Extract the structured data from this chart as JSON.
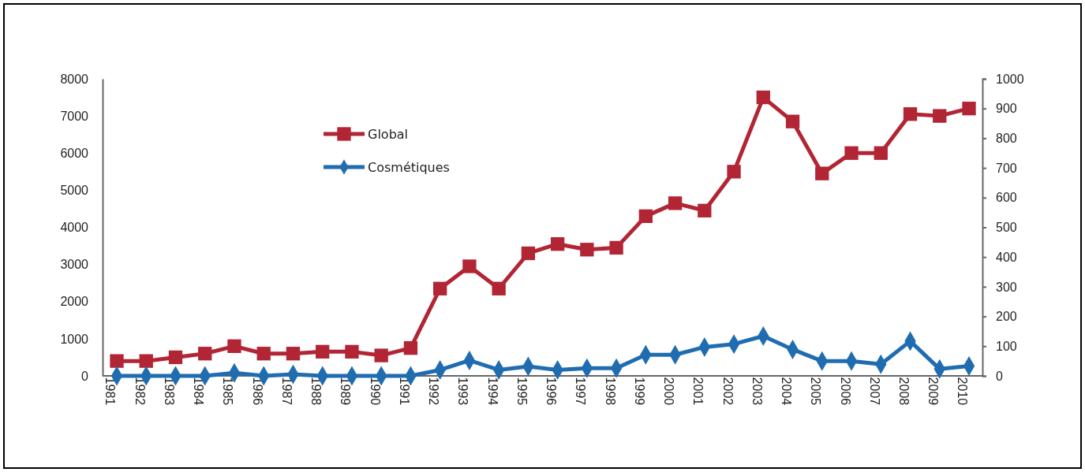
{
  "chart_data": {
    "type": "line",
    "categories": [
      "1981",
      "1982",
      "1983",
      "1984",
      "1985",
      "1986",
      "1987",
      "1988",
      "1989",
      "1990",
      "1991",
      "1992",
      "1993",
      "1994",
      "1995",
      "1996",
      "1997",
      "1998",
      "1999",
      "2000",
      "2001",
      "2002",
      "2003",
      "2004",
      "2005",
      "2006",
      "2007",
      "2008",
      "2009",
      "2010"
    ],
    "series": [
      {
        "name": "Global",
        "color": "#b22534",
        "marker": "square",
        "values": [
          400,
          400,
          500,
          600,
          800,
          600,
          600,
          650,
          650,
          550,
          750,
          2350,
          2950,
          2350,
          3300,
          3550,
          3400,
          3450,
          4300,
          4650,
          4450,
          5500,
          7500,
          6850,
          5450,
          6000,
          6000,
          7050,
          7000,
          7200
        ]
      },
      {
        "name": "Cosmétiques",
        "color": "#1f6db0",
        "marker": "diamond",
        "axis": "y2",
        "values": [
          0,
          0,
          0,
          0,
          10,
          0,
          5,
          0,
          0,
          0,
          0,
          20,
          52,
          20,
          32,
          20,
          26,
          26,
          71,
          71,
          97,
          107,
          134,
          89,
          50,
          50,
          39,
          117,
          23,
          33
        ]
      }
    ],
    "ylim": [
      0,
      8000
    ],
    "yticks": [
      0,
      1000,
      2000,
      3000,
      4000,
      5000,
      6000,
      7000,
      8000
    ],
    "y2lim": [
      0,
      1000
    ],
    "y2ticks": [
      0,
      100,
      200,
      300,
      400,
      500,
      600,
      700,
      800,
      900,
      1000
    ],
    "legend": "top left",
    "grid": false,
    "line_style": "solid"
  }
}
